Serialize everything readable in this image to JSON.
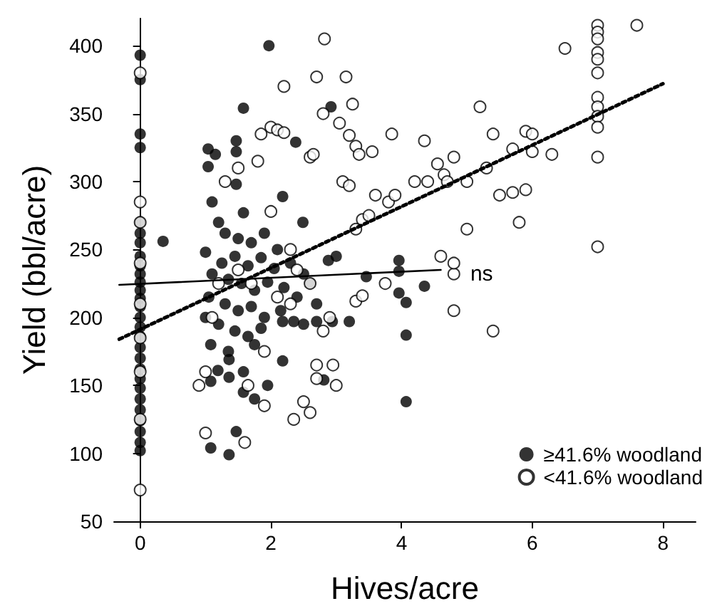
{
  "chart_data": {
    "type": "scatter",
    "xlabel": "Hives/acre",
    "ylabel": "Yield (bbl/acre)",
    "xlim": [
      -0.4,
      8.5
    ],
    "xticks": [
      0,
      2,
      4,
      6,
      8
    ],
    "ylim": [
      50,
      420
    ],
    "yticks": [
      50,
      100,
      150,
      200,
      250,
      300,
      350,
      400
    ],
    "grid": false,
    "legend": "bottom right",
    "marker": "circle",
    "annotations": [
      {
        "text": "ns",
        "x": 4.9,
        "y": 232
      }
    ],
    "series": [
      {
        "name": "≥41.6% woodland",
        "color": "#000000",
        "x": [
          0,
          0,
          0,
          0,
          0,
          0,
          0,
          0,
          0,
          0,
          0,
          0,
          0,
          0,
          0,
          0,
          0,
          0,
          0,
          0,
          0,
          0,
          0,
          0,
          0,
          0,
          0,
          0,
          0.35,
          1.97,
          1.58,
          2.38,
          1.04,
          1.15,
          1.47,
          1.47,
          1.04,
          1.47,
          2.18,
          1.58,
          2.49,
          1.1,
          1.2,
          1.3,
          1.5,
          1.7,
          1.9,
          2.1,
          1.0,
          1.25,
          1.45,
          1.65,
          1.85,
          2.05,
          2.3,
          2.5,
          1.1,
          1.35,
          1.55,
          1.75,
          1.95,
          2.2,
          2.4,
          1.05,
          1.3,
          1.5,
          1.7,
          1.9,
          2.15,
          2.35,
          1.0,
          1.2,
          1.45,
          1.65,
          1.85,
          2.18,
          2.5,
          1.08,
          1.35,
          1.75,
          1.36,
          2.18,
          1.19,
          1.58,
          1.36,
          1.08,
          1.58,
          1.75,
          1.95,
          1.08,
          1.47,
          1.36,
          2.92,
          2.81,
          2.7,
          2.94,
          3.2,
          3.46,
          2.88,
          3.0,
          3.96,
          3.96,
          4.35,
          3.96,
          4.07,
          4.07,
          4.07,
          2.7,
          2.6
        ],
        "values": [
          393,
          375,
          335,
          325,
          270,
          262,
          255,
          245,
          238,
          232,
          226,
          220,
          214,
          208,
          200,
          193,
          186,
          178,
          170,
          162,
          155,
          148,
          140,
          132,
          124,
          116,
          108,
          102,
          256,
          400,
          354,
          329,
          324,
          320,
          330,
          322,
          311,
          298,
          289,
          277,
          270,
          285,
          270,
          262,
          258,
          255,
          262,
          250,
          248,
          240,
          245,
          238,
          244,
          236,
          240,
          232,
          232,
          228,
          225,
          220,
          226,
          222,
          215,
          215,
          210,
          205,
          208,
          200,
          205,
          197,
          200,
          195,
          190,
          186,
          192,
          197,
          195,
          180,
          175,
          180,
          169,
          168,
          161,
          160,
          156,
          153,
          145,
          140,
          150,
          104,
          116,
          99,
          355,
          154,
          197,
          197,
          197,
          230,
          242,
          245,
          242,
          234,
          223,
          218,
          211,
          187,
          138,
          210,
          225
        ]
      },
      {
        "name": "<41.6% woodland",
        "color": "#000000",
        "x": [
          0,
          0,
          0,
          0,
          0,
          0,
          0,
          0,
          2.82,
          2.7,
          3.15,
          3.25,
          2.8,
          3.05,
          3.2,
          3.3,
          3.35,
          3.55,
          2.6,
          2.65,
          2.0,
          2.1,
          2.2,
          1.85,
          3.85,
          4.35,
          4.8,
          4.55,
          4.65,
          4.7,
          3.1,
          3.2,
          2.2,
          3.6,
          3.4,
          3.5,
          3.8,
          3.9,
          3.3,
          4.2,
          4.4,
          5.3,
          5.0,
          5.4,
          5.2,
          5.9,
          6.0,
          5.7,
          6.3,
          6.0,
          5.5,
          5.7,
          5.9,
          5.8,
          6.5,
          7.0,
          7.0,
          7.0,
          7.0,
          7.0,
          7.0,
          7.0,
          7.0,
          7.0,
          7.0,
          7.0,
          7.0,
          7.6,
          5.0,
          4.6,
          4.8,
          5.4,
          3.75,
          4.8,
          4.8,
          2.4,
          2.6,
          1.5,
          1.7,
          2.1,
          2.3,
          2.8,
          2.9,
          3.3,
          3.4,
          1.9,
          2.7,
          2.95,
          2.7,
          3.0,
          1.65,
          1.9,
          2.35,
          2.5,
          2.6,
          1.0,
          1.6,
          0,
          1.2,
          1.1,
          0.9,
          1.0,
          1.3,
          1.5,
          1.8,
          2.0,
          2.3
        ],
        "values": [
          380,
          285,
          270,
          240,
          210,
          185,
          160,
          125,
          405,
          377,
          377,
          357,
          350,
          343,
          334,
          326,
          320,
          322,
          318,
          320,
          340,
          338,
          336,
          335,
          335,
          330,
          318,
          313,
          305,
          300,
          300,
          297,
          370,
          290,
          272,
          275,
          285,
          290,
          265,
          300,
          300,
          310,
          300,
          335,
          355,
          337,
          335,
          324,
          320,
          322,
          290,
          292,
          294,
          270,
          398,
          415,
          410,
          405,
          395,
          390,
          380,
          362,
          355,
          348,
          340,
          318,
          252,
          415,
          265,
          245,
          205,
          190,
          225,
          232,
          240,
          235,
          225,
          235,
          225,
          215,
          210,
          190,
          200,
          212,
          216,
          175,
          165,
          165,
          155,
          150,
          150,
          135,
          125,
          138,
          130,
          115,
          108,
          73,
          225,
          200,
          150,
          160,
          300,
          310,
          315,
          278,
          250
        ]
      },
      {
        "type": "line",
        "color": "#000000",
        "line_style": "solid",
        "marker": "none",
        "x": [
          -0.32,
          4.6
        ],
        "values": [
          224,
          235
        ]
      },
      {
        "type": "line",
        "color": "#000000",
        "line_style": "dotted",
        "marker": "none",
        "x": [
          -0.32,
          8.0
        ],
        "values": [
          184,
          372
        ]
      }
    ]
  }
}
